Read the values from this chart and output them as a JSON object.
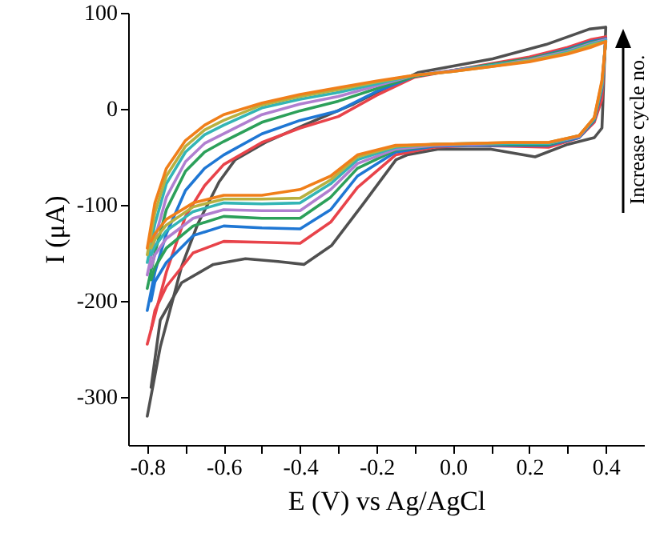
{
  "chart_data": {
    "type": "line",
    "xlabel": "E (V) vs Ag/AgCl",
    "ylabel": "I (μA)",
    "annotations": [
      "Increase cycle no."
    ],
    "grid": false,
    "marker": "none",
    "line_style": "solid",
    "xlim": [
      -0.85,
      0.5
    ],
    "ylim": [
      -350,
      100
    ],
    "xticks": [
      -0.8,
      {
        "value": -0.7,
        "label": null
      },
      -0.6,
      {
        "value": -0.5,
        "label": null
      },
      -0.4,
      {
        "value": -0.3,
        "label": null
      },
      -0.2,
      {
        "value": -0.1,
        "label": null
      },
      {
        "value": 0,
        "label": "0.0"
      },
      {
        "value": 0.1,
        "label": null
      },
      0.2,
      {
        "value": 0.3,
        "label": null
      },
      0.4
    ],
    "yticks": [
      -300,
      -200,
      -100,
      0,
      100
    ],
    "series": [
      {
        "color": "#505050",
        "x": [
          -0.8,
          -0.766,
          -0.71,
          -0.668,
          -0.612,
          -0.57,
          -0.486,
          -0.39,
          -0.26,
          -0.149,
          -0.09,
          0.104,
          0.244,
          0.357,
          0.4
        ],
        "values": [
          -320,
          -248,
          -164,
          -120,
          -76,
          -53,
          -34,
          -17,
          5,
          27,
          38,
          52,
          67,
          83,
          85
        ]
      },
      {
        "color": "#505050",
        "x": [
          0.4,
          0.39,
          0.37,
          0.3,
          0.215,
          0.1,
          -0.04,
          -0.12,
          -0.149,
          -0.233,
          -0.317,
          -0.39,
          -0.458,
          -0.543,
          -0.627,
          -0.71,
          -0.766,
          -0.79
        ],
        "values": [
          85,
          -20,
          -30,
          -37,
          -50,
          -42,
          -42,
          -48,
          -53,
          -98,
          -142,
          -162,
          -159,
          -156,
          -162,
          -181,
          -220,
          -290
        ]
      },
      {
        "color": "#e8434a",
        "x": [
          -0.8,
          -0.78,
          -0.75,
          -0.7,
          -0.65,
          -0.6,
          -0.5,
          -0.4,
          -0.3,
          -0.2,
          -0.1,
          0,
          0.1,
          0.2,
          0.3,
          0.36,
          0.4
        ],
        "values": [
          -245,
          -215,
          -170,
          -112,
          -80,
          -58,
          -35,
          -20,
          -8,
          14,
          33,
          40,
          47,
          54,
          64,
          72,
          75
        ]
      },
      {
        "color": "#e8434a",
        "x": [
          0.4,
          0.39,
          0.37,
          0.33,
          0.25,
          0.15,
          0.05,
          -0.05,
          -0.15,
          -0.25,
          -0.32,
          -0.4,
          -0.5,
          -0.6,
          -0.68,
          -0.75,
          -0.78,
          -0.79
        ],
        "values": [
          75,
          10,
          -14,
          -30,
          -40,
          -39,
          -38,
          -40,
          -48,
          -82,
          -118,
          -140,
          -139,
          -138,
          -150,
          -185,
          -210,
          -230
        ]
      },
      {
        "color": "#1f77d4",
        "x": [
          -0.8,
          -0.78,
          -0.75,
          -0.7,
          -0.65,
          -0.6,
          -0.5,
          -0.4,
          -0.3,
          -0.2,
          -0.1,
          0,
          0.1,
          0.2,
          0.3,
          0.36,
          0.4
        ],
        "values": [
          -210,
          -170,
          -130,
          -85,
          -62,
          -48,
          -26,
          -12,
          -2,
          18,
          34,
          40,
          46,
          52,
          62,
          70,
          73
        ]
      },
      {
        "color": "#1f77d4",
        "x": [
          0.4,
          0.39,
          0.37,
          0.33,
          0.25,
          0.15,
          0.05,
          -0.05,
          -0.15,
          -0.25,
          -0.32,
          -0.4,
          -0.5,
          -0.6,
          -0.68,
          -0.75,
          -0.78,
          -0.79
        ],
        "values": [
          73,
          20,
          -12,
          -30,
          -38,
          -38,
          -38,
          -39,
          -45,
          -70,
          -105,
          -125,
          -124,
          -122,
          -132,
          -160,
          -180,
          -200
        ]
      },
      {
        "color": "#2ca05a",
        "x": [
          -0.8,
          -0.78,
          -0.75,
          -0.7,
          -0.65,
          -0.6,
          -0.5,
          -0.4,
          -0.3,
          -0.2,
          -0.1,
          0,
          0.1,
          0.2,
          0.3,
          0.36,
          0.4
        ],
        "values": [
          -187,
          -150,
          -105,
          -65,
          -45,
          -34,
          -14,
          -2,
          8,
          21,
          34,
          40,
          46,
          52,
          61,
          69,
          72
        ]
      },
      {
        "color": "#2ca05a",
        "x": [
          0.4,
          0.39,
          0.37,
          0.33,
          0.25,
          0.15,
          0.05,
          -0.05,
          -0.15,
          -0.25,
          -0.32,
          -0.4,
          -0.5,
          -0.6,
          -0.68,
          -0.75,
          -0.78,
          -0.79
        ],
        "values": [
          72,
          22,
          -11,
          -29,
          -37,
          -37,
          -37,
          -38,
          -43,
          -62,
          -92,
          -114,
          -114,
          -112,
          -122,
          -145,
          -165,
          -178
        ]
      },
      {
        "color": "#b07fd0",
        "x": [
          -0.8,
          -0.78,
          -0.75,
          -0.7,
          -0.65,
          -0.6,
          -0.5,
          -0.4,
          -0.3,
          -0.2,
          -0.1,
          0,
          0.1,
          0.2,
          0.3,
          0.36,
          0.4
        ],
        "values": [
          -173,
          -135,
          -92,
          -55,
          -36,
          -26,
          -6,
          5,
          13,
          24,
          35,
          40,
          45,
          51,
          60,
          68,
          72
        ]
      },
      {
        "color": "#b07fd0",
        "x": [
          0.4,
          0.39,
          0.37,
          0.33,
          0.25,
          0.15,
          0.05,
          -0.05,
          -0.15,
          -0.25,
          -0.32,
          -0.4,
          -0.5,
          -0.6,
          -0.68,
          -0.75,
          -0.78,
          -0.79
        ],
        "values": [
          72,
          24,
          -10,
          -29,
          -36,
          -36,
          -37,
          -38,
          -42,
          -57,
          -84,
          -106,
          -106,
          -105,
          -114,
          -135,
          -152,
          -165
        ]
      },
      {
        "color": "#33b5b5",
        "x": [
          -0.8,
          -0.78,
          -0.75,
          -0.7,
          -0.65,
          -0.6,
          -0.5,
          -0.4,
          -0.3,
          -0.2,
          -0.1,
          0,
          0.1,
          0.2,
          0.3,
          0.36,
          0.4
        ],
        "values": [
          -160,
          -120,
          -78,
          -45,
          -27,
          -17,
          1,
          10,
          17,
          26,
          35,
          39,
          45,
          50,
          59,
          67,
          71
        ]
      },
      {
        "color": "#33b5b5",
        "x": [
          0.4,
          0.39,
          0.37,
          0.33,
          0.25,
          0.15,
          0.05,
          -0.05,
          -0.15,
          -0.25,
          -0.32,
          -0.4,
          -0.5,
          -0.6,
          -0.68,
          -0.75,
          -0.78,
          -0.79
        ],
        "values": [
          71,
          26,
          -10,
          -28,
          -36,
          -36,
          -36,
          -37,
          -40,
          -53,
          -78,
          -98,
          -99,
          -98,
          -107,
          -127,
          -143,
          -152
        ]
      },
      {
        "color": "#b8b040",
        "x": [
          -0.8,
          -0.78,
          -0.75,
          -0.7,
          -0.65,
          -0.6,
          -0.5,
          -0.4,
          -0.3,
          -0.2,
          -0.1,
          0,
          0.1,
          0.2,
          0.3,
          0.36,
          0.4
        ],
        "values": [
          -152,
          -108,
          -70,
          -39,
          -22,
          -12,
          4,
          13,
          20,
          28,
          35,
          39,
          44,
          50,
          58,
          66,
          70
        ]
      },
      {
        "color": "#b8b040",
        "x": [
          0.4,
          0.39,
          0.37,
          0.33,
          0.25,
          0.15,
          0.05,
          -0.05,
          -0.15,
          -0.25,
          -0.32,
          -0.4,
          -0.5,
          -0.6,
          -0.68,
          -0.75,
          -0.78,
          -0.79
        ],
        "values": [
          70,
          28,
          -9,
          -28,
          -35,
          -35,
          -36,
          -37,
          -39,
          -50,
          -74,
          -93,
          -94,
          -94,
          -102,
          -121,
          -136,
          -145
        ]
      },
      {
        "color": "#f07f1a",
        "x": [
          -0.8,
          -0.78,
          -0.75,
          -0.7,
          -0.65,
          -0.6,
          -0.5,
          -0.4,
          -0.3,
          -0.2,
          -0.1,
          0,
          0.1,
          0.2,
          0.3,
          0.36,
          0.4
        ],
        "values": [
          -145,
          -98,
          -62,
          -33,
          -17,
          -6,
          6,
          15,
          22,
          29,
          35,
          39,
          44,
          49,
          57,
          64,
          70
        ]
      },
      {
        "color": "#f07f1a",
        "x": [
          0.4,
          0.39,
          0.37,
          0.33,
          0.25,
          0.15,
          0.05,
          -0.05,
          -0.15,
          -0.25,
          -0.32,
          -0.4,
          -0.5,
          -0.6,
          -0.68,
          -0.75,
          -0.78,
          -0.79
        ],
        "values": [
          70,
          30,
          -9,
          -28,
          -35,
          -35,
          -36,
          -37,
          -38,
          -48,
          -70,
          -84,
          -90,
          -90,
          -98,
          -115,
          -130,
          -138
        ]
      }
    ]
  }
}
